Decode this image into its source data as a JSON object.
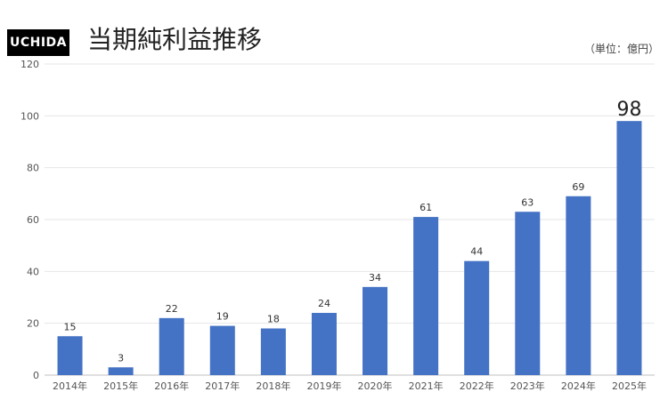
{
  "header": {
    "logo_text": "UCHIDA",
    "title": "当期純利益推移",
    "unit": "（単位：億円）"
  },
  "colors": {
    "bar": "#4472C4",
    "grid": "#e6e6e6",
    "axis": "#bfbfbf"
  },
  "chart_data": {
    "type": "bar",
    "title": "当期純利益推移",
    "unit": "（単位：億円）",
    "categories": [
      "2014年",
      "2015年",
      "2016年",
      "2017年",
      "2018年",
      "2019年",
      "2020年",
      "2021年",
      "2022年",
      "2023年",
      "2024年",
      "2025年"
    ],
    "values": [
      15,
      3,
      22,
      19,
      18,
      24,
      34,
      61,
      44,
      63,
      69,
      98
    ],
    "data_labels": [
      "15",
      "3",
      "22",
      "19",
      "18",
      "24",
      "34",
      "61",
      "44",
      "63",
      "69",
      "98"
    ],
    "highlight_index": 11,
    "ylim": [
      0,
      120
    ],
    "yticks": [
      0,
      20,
      40,
      60,
      80,
      100,
      120
    ],
    "ytick_labels": [
      "0",
      "20",
      "40",
      "60",
      "80",
      "100",
      "120"
    ],
    "grid": true,
    "legend": "none",
    "xlabel": "",
    "ylabel": ""
  }
}
